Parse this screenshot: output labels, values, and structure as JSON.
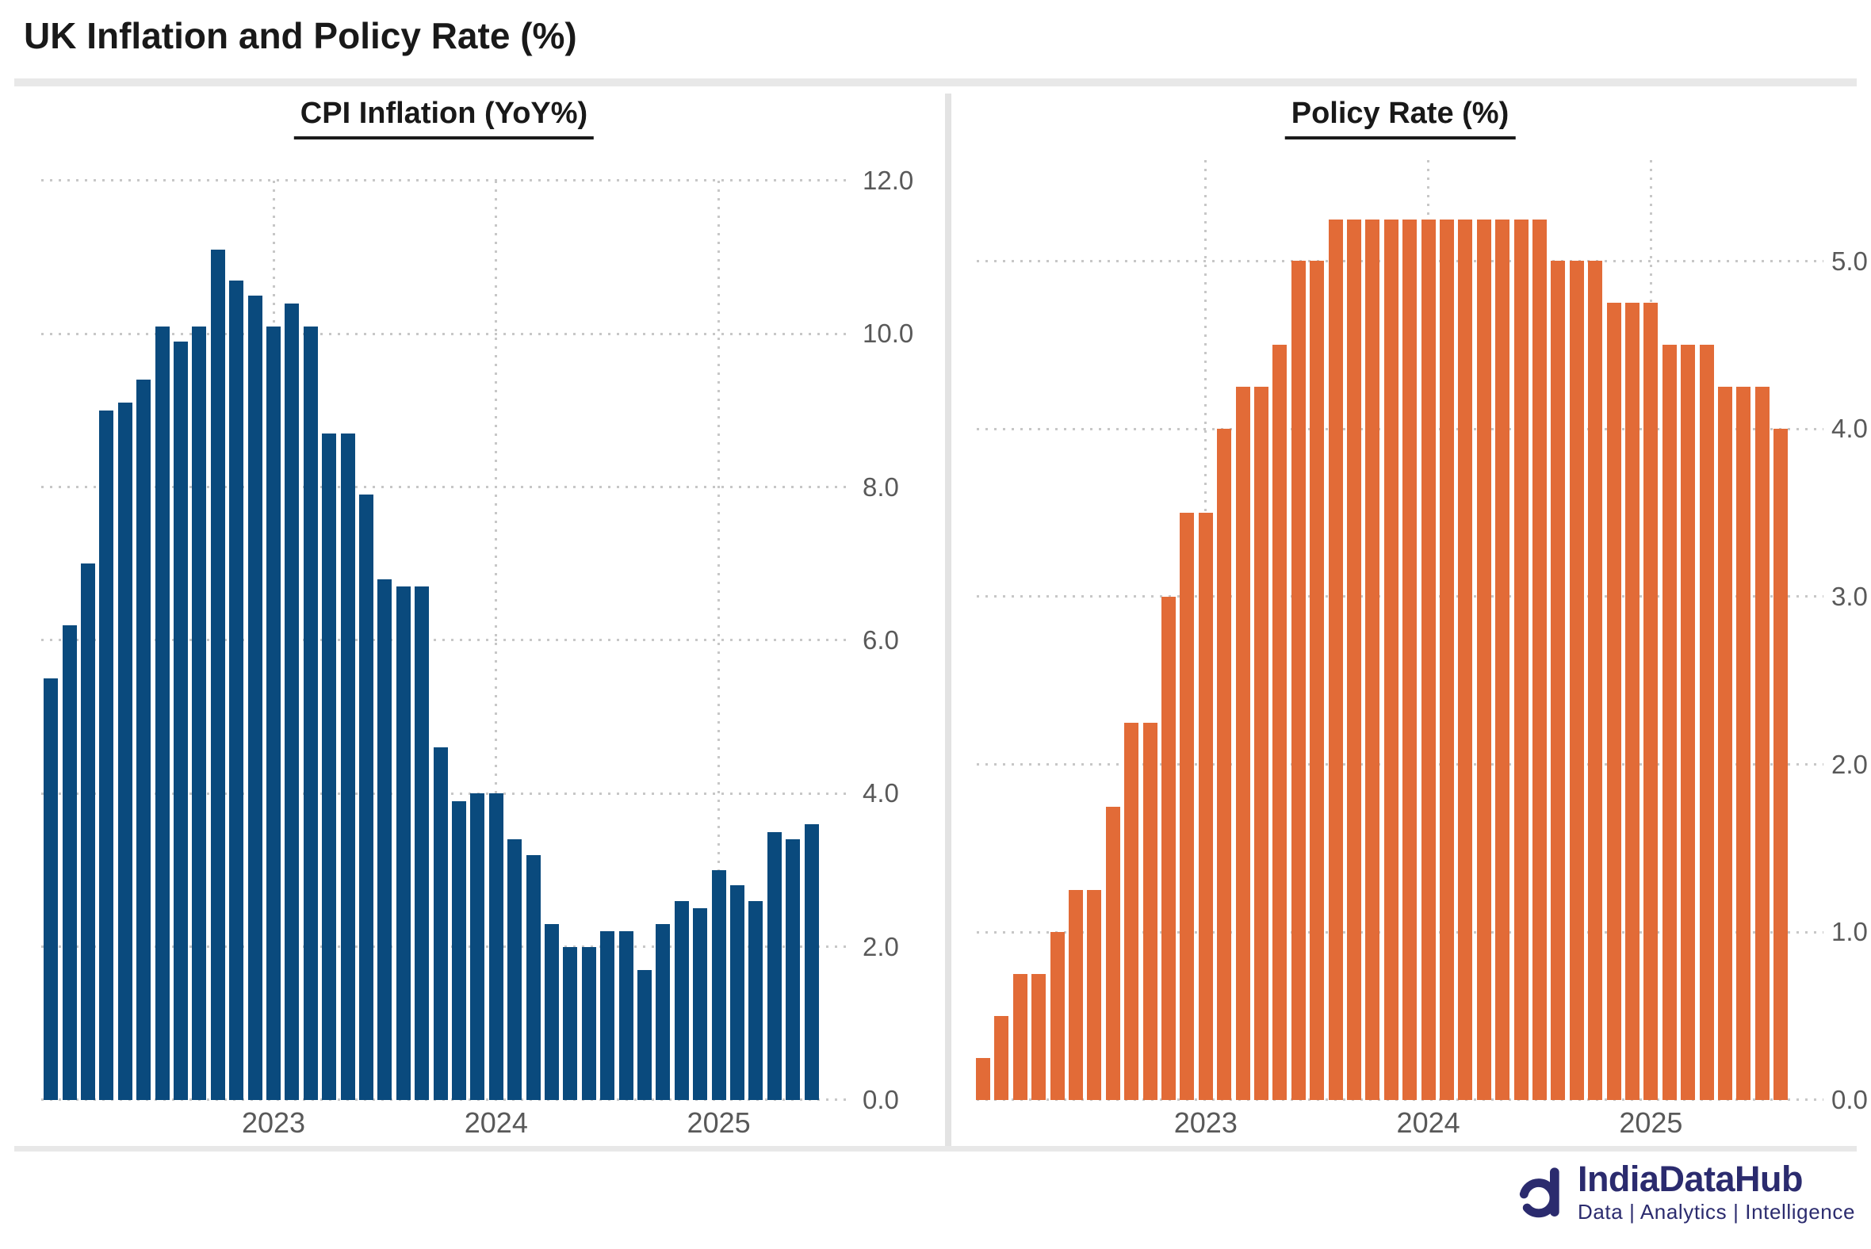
{
  "header": {
    "title": "UK Inflation and Policy Rate (%)"
  },
  "chart_data": [
    {
      "id": "plot-cpi",
      "type": "bar",
      "title": "CPI Inflation (YoY%)",
      "bar_color": "#0a4a7d",
      "x_unit": "month",
      "x_start_year": 2022,
      "x_year_labels": [
        "2023",
        "2024",
        "2025"
      ],
      "year_start_indices": [
        12,
        24,
        36
      ],
      "values": [
        5.5,
        6.2,
        7.0,
        9.0,
        9.1,
        9.4,
        10.1,
        9.9,
        10.1,
        11.1,
        10.7,
        10.5,
        10.1,
        10.4,
        10.1,
        8.7,
        8.7,
        7.9,
        6.8,
        6.7,
        6.7,
        4.6,
        3.9,
        4.0,
        4.0,
        3.4,
        3.2,
        2.3,
        2.0,
        2.0,
        2.2,
        2.2,
        1.7,
        2.3,
        2.6,
        2.5,
        3.0,
        2.8,
        2.6,
        3.5,
        3.4,
        3.6
      ],
      "ylim": [
        0,
        12.0
      ],
      "yticks": [
        0,
        2,
        4,
        6,
        8,
        10,
        12
      ],
      "grid": "dotted",
      "yaxis_side": "right",
      "legend": "none"
    },
    {
      "id": "plot-policy",
      "type": "bar",
      "title": "Policy Rate (%)",
      "bar_color": "#e26b37",
      "x_unit": "month",
      "x_start_year": 2022,
      "x_year_labels": [
        "2023",
        "2024",
        "2025"
      ],
      "year_start_indices": [
        12,
        24,
        36
      ],
      "values": [
        0.25,
        0.5,
        0.75,
        0.75,
        1.0,
        1.25,
        1.25,
        1.75,
        2.25,
        2.25,
        3.0,
        3.5,
        3.5,
        4.0,
        4.25,
        4.25,
        4.5,
        5.0,
        5.0,
        5.25,
        5.25,
        5.25,
        5.25,
        5.25,
        5.25,
        5.25,
        5.25,
        5.25,
        5.25,
        5.25,
        5.25,
        5.0,
        5.0,
        5.0,
        4.75,
        4.75,
        4.75,
        4.5,
        4.5,
        4.5,
        4.25,
        4.25,
        4.25,
        4.0
      ],
      "ylim": [
        0,
        5.6
      ],
      "yticks": [
        0,
        1,
        2,
        3,
        4,
        5
      ],
      "grid": "dotted",
      "yaxis_side": "right",
      "legend": "none"
    }
  ],
  "footer": {
    "brand": "IndiaDataHub",
    "tagline": "Data | Analytics | Intelligence",
    "brand_color": "#2b2b6e"
  },
  "colors": {
    "cpi_bar": "#0a4a7d",
    "policy_bar": "#e26b37",
    "gridline": "#c7c7c7",
    "axis_text": "#595959",
    "divider": "#e8e8e8"
  }
}
